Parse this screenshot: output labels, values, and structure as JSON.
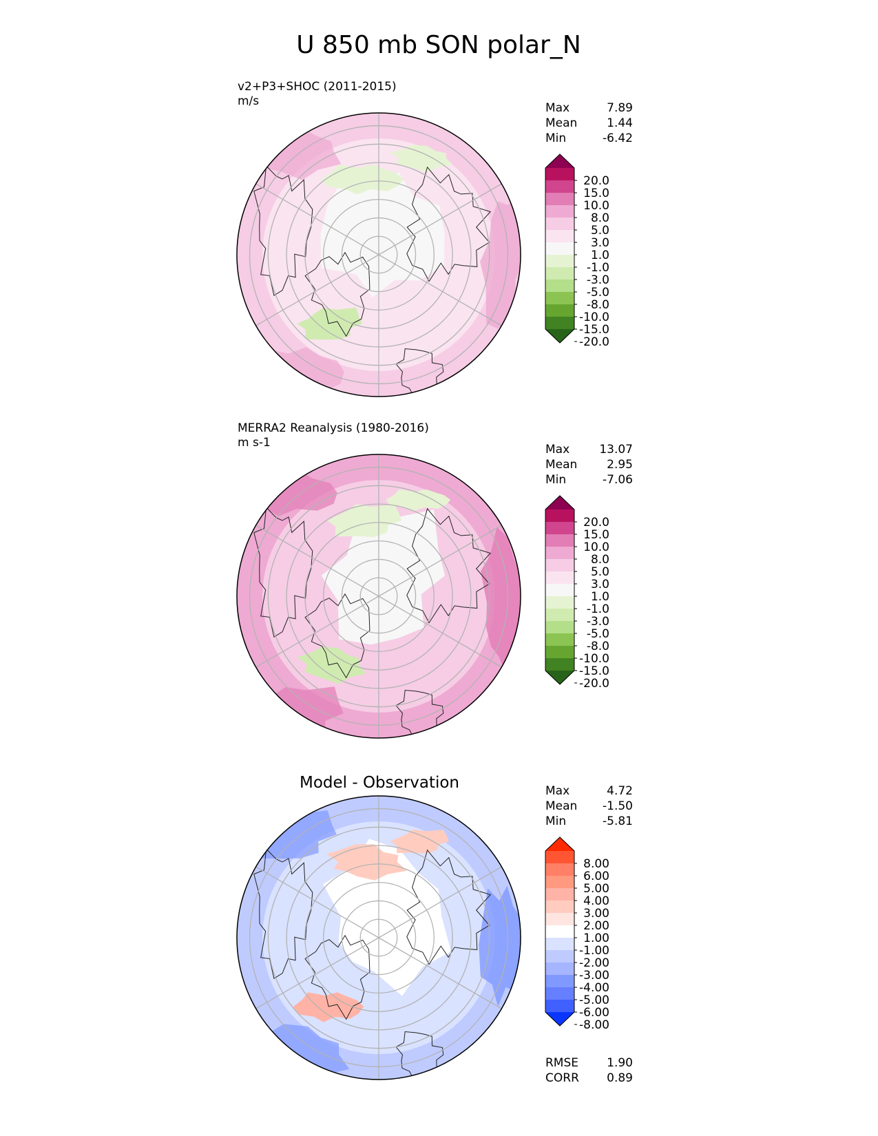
{
  "title": "U 850 mb SON polar_N",
  "panels": [
    {
      "title_line1": "v2+P3+SHOC (2011-2015)",
      "title_line2": "m/s",
      "center_title": "",
      "stats": [
        {
          "label": "Max",
          "value": "7.89"
        },
        {
          "label": "Mean",
          "value": "1.44"
        },
        {
          "label": "Min",
          "value": "-6.42"
        }
      ],
      "colorbar": {
        "labels": [
          "20.0",
          "15.0",
          "10.0",
          "8.0",
          "5.0",
          "3.0",
          "1.0",
          "-1.0",
          "-3.0",
          "-5.0",
          "-8.0",
          "-10.0",
          "-15.0",
          "-20.0"
        ],
        "colors": [
          "#8e0152",
          "#b8125e",
          "#d0458d",
          "#e27db6",
          "#eeaad2",
          "#f6cde5",
          "#fae4f0",
          "#f7f7f7",
          "#e6f3d3",
          "#d0ebb0",
          "#b3de8a",
          "#8cc453",
          "#66a630",
          "#418222",
          "#276419"
        ]
      },
      "field_colors": {
        "base": "#f7f7f7",
        "ring": "#fae4f0",
        "outer": "#f6cde5",
        "edge": "#eeaad2",
        "neg1": "#e6f3d3",
        "neg2": "#d0ebb0"
      }
    },
    {
      "title_line1": "MERRA2 Reanalysis (1980-2016)",
      "title_line2": "m s-1",
      "center_title": "",
      "stats": [
        {
          "label": "Max",
          "value": "13.07"
        },
        {
          "label": "Mean",
          "value": "2.95"
        },
        {
          "label": "Min",
          "value": "-7.06"
        }
      ],
      "colorbar": {
        "labels": [
          "20.0",
          "15.0",
          "10.0",
          "8.0",
          "5.0",
          "3.0",
          "1.0",
          "-1.0",
          "-3.0",
          "-5.0",
          "-8.0",
          "-10.0",
          "-15.0",
          "-20.0"
        ],
        "colors": [
          "#8e0152",
          "#b8125e",
          "#d0458d",
          "#e27db6",
          "#eeaad2",
          "#f6cde5",
          "#fae4f0",
          "#f7f7f7",
          "#e6f3d3",
          "#d0ebb0",
          "#b3de8a",
          "#8cc453",
          "#66a630",
          "#418222",
          "#276419"
        ]
      },
      "field_colors": {
        "base": "#f7f7f7",
        "ring": "#f6cde5",
        "outer": "#eeaad2",
        "edge": "#e27db6",
        "neg1": "#e6f3d3",
        "neg2": "#d0ebb0"
      }
    },
    {
      "title_line1": "",
      "title_line2": "",
      "center_title": "Model - Observation",
      "stats": [
        {
          "label": "Max",
          "value": "4.72"
        },
        {
          "label": "Mean",
          "value": "-1.50"
        },
        {
          "label": "Min",
          "value": "-5.81"
        }
      ],
      "colorbar": {
        "labels": [
          "8.00",
          "6.00",
          "5.00",
          "4.00",
          "3.00",
          "2.00",
          "1.00",
          "-1.00",
          "-2.00",
          "-3.00",
          "-4.00",
          "-5.00",
          "-6.00",
          "-8.00"
        ],
        "colors": [
          "#ff2a00",
          "#ff5533",
          "#ff8066",
          "#ff9980",
          "#ffb3a6",
          "#ffccbf",
          "#ffe5e0",
          "#ffffff",
          "#d9e2ff",
          "#bfcbff",
          "#a6b5ff",
          "#8099ff",
          "#667fff",
          "#4060ff",
          "#0a36ff"
        ]
      },
      "field_colors": {
        "base": "#ffffff",
        "ring": "#d9e2ff",
        "outer": "#bfcbff",
        "edge": "#8099ff",
        "neg1": "#ffccbf",
        "neg2": "#ffb3a6"
      },
      "bottom_stats": [
        {
          "label": "RMSE",
          "value": "1.90"
        },
        {
          "label": "CORR",
          "value": "0.89"
        }
      ]
    }
  ],
  "chart_data": {
    "type": "heatmap",
    "title": "U 850 mb SON polar_N",
    "projection": "north polar stereographic",
    "grid": true,
    "panels": [
      {
        "name": "v2+P3+SHOC (2011-2015)",
        "units": "m/s",
        "max": 7.89,
        "mean": 1.44,
        "min": -6.42,
        "levels": [
          -20,
          -15,
          -10,
          -8,
          -5,
          -3,
          -1,
          1,
          3,
          5,
          8,
          10,
          15,
          20
        ]
      },
      {
        "name": "MERRA2 Reanalysis (1980-2016)",
        "units": "m s-1",
        "max": 13.07,
        "mean": 2.95,
        "min": -7.06,
        "levels": [
          -20,
          -15,
          -10,
          -8,
          -5,
          -3,
          -1,
          1,
          3,
          5,
          8,
          10,
          15,
          20
        ]
      },
      {
        "name": "Model - Observation",
        "max": 4.72,
        "mean": -1.5,
        "min": -5.81,
        "rmse": 1.9,
        "corr": 0.89,
        "levels": [
          -8,
          -6,
          -5,
          -4,
          -3,
          -2,
          -1,
          1,
          2,
          3,
          4,
          5,
          6,
          8
        ]
      }
    ],
    "legend": "right"
  }
}
